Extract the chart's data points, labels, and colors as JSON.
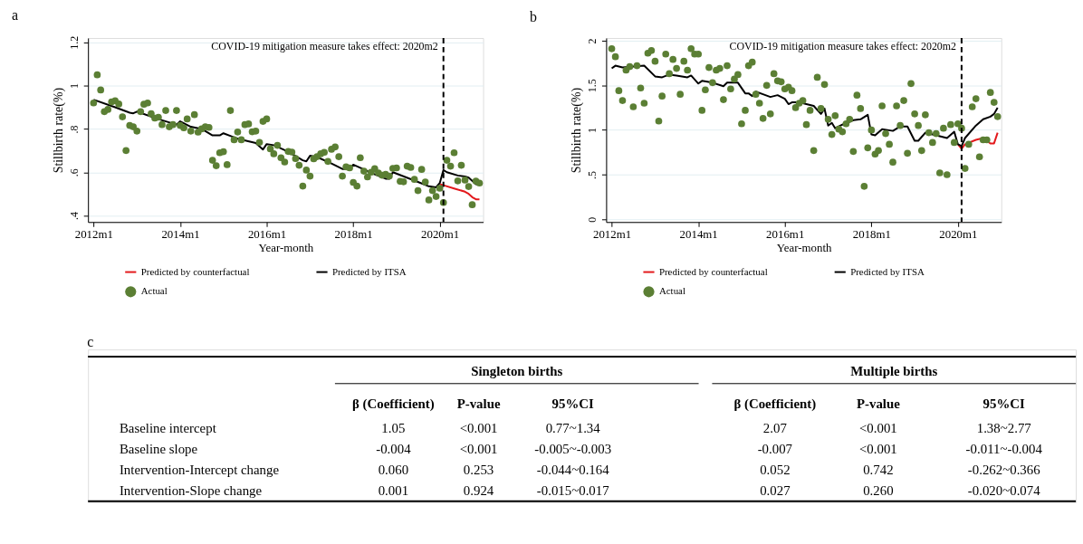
{
  "chart_data": [
    {
      "type": "scatter",
      "title": "a",
      "xlabel": "Year-month",
      "ylabel": "Stillbirth rate(%)",
      "x": [
        "2012-01",
        "2012-02",
        "2012-03",
        "2012-04",
        "2012-05",
        "2012-06",
        "2012-07",
        "2012-08",
        "2012-09",
        "2012-10",
        "2012-11",
        "2012-12",
        "2013-01",
        "2013-02",
        "2013-03",
        "2013-04",
        "2013-05",
        "2013-06",
        "2013-07",
        "2013-08",
        "2013-09",
        "2013-10",
        "2013-11",
        "2013-12",
        "2014-01",
        "2014-02",
        "2014-03",
        "2014-04",
        "2014-05",
        "2014-06",
        "2014-07",
        "2014-08",
        "2014-09",
        "2014-10",
        "2014-11",
        "2014-12",
        "2015-01",
        "2015-02",
        "2015-03",
        "2015-04",
        "2015-05",
        "2015-06",
        "2015-07",
        "2015-08",
        "2015-09",
        "2015-10",
        "2015-11",
        "2015-12",
        "2016-01",
        "2016-02",
        "2016-03",
        "2016-04",
        "2016-05",
        "2016-06",
        "2016-07",
        "2016-08",
        "2016-09",
        "2016-10",
        "2016-11",
        "2016-12",
        "2017-01",
        "2017-02",
        "2017-03",
        "2017-04",
        "2017-05",
        "2017-06",
        "2017-07",
        "2017-08",
        "2017-09",
        "2017-10",
        "2017-11",
        "2017-12",
        "2018-01",
        "2018-02",
        "2018-03",
        "2018-04",
        "2018-05",
        "2018-06",
        "2018-07",
        "2018-08",
        "2018-09",
        "2018-10",
        "2018-11",
        "2018-12",
        "2019-01",
        "2019-02",
        "2019-03",
        "2019-04",
        "2019-05",
        "2019-06",
        "2019-07",
        "2019-08",
        "2019-09",
        "2019-10",
        "2019-11",
        "2019-12",
        "2020-01",
        "2020-02",
        "2020-03",
        "2020-04",
        "2020-05",
        "2020-06",
        "2020-07",
        "2020-08",
        "2020-09",
        "2020-10",
        "2020-11",
        "2020-12"
      ],
      "series": [
        {
          "name": "Predicted by counterfactual",
          "type": "line",
          "color": "#e3191c",
          "x": [
            "2020-01",
            "2020-02",
            "2020-05",
            "2020-08",
            "2020-09",
            "2020-10",
            "2020-11",
            "2020-12"
          ],
          "values": [
            0.545,
            0.54,
            0.525,
            0.51,
            0.5,
            0.485,
            0.475,
            0.475
          ]
        },
        {
          "name": "Predicted by ITSA",
          "type": "line",
          "color": "#000000",
          "x": [
            "2012-01",
            "2012-07",
            "2012-11",
            "2012-12",
            "2013-01",
            "2013-07",
            "2013-12",
            "2014-01",
            "2014-04",
            "2014-07",
            "2014-10",
            "2014-12",
            "2015-01",
            "2015-05",
            "2015-10",
            "2015-12",
            "2016-01",
            "2016-03",
            "2016-07",
            "2016-11",
            "2016-12",
            "2017-01",
            "2017-03",
            "2017-07",
            "2017-10",
            "2017-12",
            "2018-01",
            "2018-07",
            "2018-10",
            "2018-11",
            "2018-12",
            "2019-07",
            "2019-10",
            "2019-12",
            "2020-01",
            "2020-02",
            "2020-03",
            "2020-06",
            "2020-08",
            "2020-09",
            "2020-11",
            "2020-12"
          ],
          "values": [
            0.935,
            0.9,
            0.875,
            0.872,
            0.88,
            0.845,
            0.82,
            0.835,
            0.81,
            0.8,
            0.77,
            0.77,
            0.78,
            0.755,
            0.735,
            0.705,
            0.73,
            0.725,
            0.695,
            0.655,
            0.65,
            0.676,
            0.67,
            0.64,
            0.615,
            0.615,
            0.635,
            0.59,
            0.57,
            0.57,
            0.6,
            0.555,
            0.535,
            0.53,
            0.55,
            0.61,
            0.6,
            0.585,
            0.58,
            0.575,
            0.545,
            0.545
          ]
        },
        {
          "name": "Actual",
          "type": "scatter",
          "marker": "circle",
          "color": "#5b7f34",
          "values": [
            0.92,
            1.05,
            0.98,
            0.88,
            0.89,
            0.925,
            0.93,
            0.915,
            0.856,
            0.7,
            0.816,
            0.81,
            0.79,
            0.88,
            0.914,
            0.92,
            0.87,
            0.85,
            0.854,
            0.82,
            0.885,
            0.81,
            0.82,
            0.885,
            0.816,
            0.805,
            0.846,
            0.79,
            0.866,
            0.785,
            0.8,
            0.81,
            0.807,
            0.655,
            0.63,
            0.69,
            0.695,
            0.635,
            0.885,
            0.75,
            0.786,
            0.75,
            0.82,
            0.823,
            0.787,
            0.79,
            0.738,
            0.835,
            0.846,
            0.708,
            0.685,
            0.724,
            0.667,
            0.647,
            0.696,
            0.693,
            0.663,
            0.632,
            0.536,
            0.61,
            0.582,
            0.662,
            0.672,
            0.685,
            0.692,
            0.65,
            0.706,
            0.717,
            0.672,
            0.582,
            0.625,
            0.62,
            0.553,
            0.536,
            0.667,
            0.605,
            0.578,
            0.6,
            0.616,
            0.597,
            0.586,
            0.59,
            0.582,
            0.618,
            0.62,
            0.558,
            0.556,
            0.628,
            0.622,
            0.567,
            0.515,
            0.613,
            0.555,
            0.472,
            0.515,
            0.488,
            0.526,
            0.46,
            0.655,
            0.628,
            0.69,
            0.56,
            0.632,
            0.564,
            0.534,
            0.45,
            0.559,
            0.55
          ]
        }
      ],
      "xlim": [
        "2011-11-15",
        "2021-01-01"
      ],
      "xticks": [
        {
          "value": "2012-01",
          "label": "2012m1"
        },
        {
          "value": "2014-01",
          "label": "2014m1"
        },
        {
          "value": "2016-01",
          "label": "2016m1"
        },
        {
          "value": "2018-01",
          "label": "2018m1"
        },
        {
          "value": "2020-01",
          "label": "2020m1"
        }
      ],
      "ylim": [
        0.37,
        1.22
      ],
      "yticks": [
        {
          "value": 0.4,
          "label": ".4"
        },
        {
          "value": 0.6,
          "label": ".6"
        },
        {
          "value": 0.8,
          "label": ".8"
        },
        1,
        1.2
      ],
      "ref_lines": [
        {
          "axis": "x",
          "value": "2020-02",
          "label": "COVID-19 mitigation measure takes effect: 2020m2",
          "color": "#000000",
          "line_style": "dashed"
        }
      ],
      "grid": "y",
      "legend": "bottom"
    },
    {
      "type": "scatter",
      "title": "b",
      "xlabel": "Year-month",
      "ylabel": "Stillbirth rate(%)",
      "x": [
        "2012-01",
        "2012-02",
        "2012-03",
        "2012-04",
        "2012-05",
        "2012-06",
        "2012-07",
        "2012-08",
        "2012-09",
        "2012-10",
        "2012-11",
        "2012-12",
        "2013-01",
        "2013-02",
        "2013-03",
        "2013-04",
        "2013-05",
        "2013-06",
        "2013-07",
        "2013-08",
        "2013-09",
        "2013-10",
        "2013-11",
        "2013-12",
        "2014-01",
        "2014-02",
        "2014-03",
        "2014-04",
        "2014-05",
        "2014-06",
        "2014-07",
        "2014-08",
        "2014-09",
        "2014-10",
        "2014-11",
        "2014-12",
        "2015-01",
        "2015-02",
        "2015-03",
        "2015-04",
        "2015-05",
        "2015-06",
        "2015-07",
        "2015-08",
        "2015-09",
        "2015-10",
        "2015-11",
        "2015-12",
        "2016-01",
        "2016-02",
        "2016-03",
        "2016-04",
        "2016-05",
        "2016-06",
        "2016-07",
        "2016-08",
        "2016-09",
        "2016-10",
        "2016-11",
        "2016-12",
        "2017-01",
        "2017-02",
        "2017-03",
        "2017-04",
        "2017-05",
        "2017-06",
        "2017-07",
        "2017-08",
        "2017-09",
        "2017-10",
        "2017-11",
        "2017-12",
        "2018-01",
        "2018-02",
        "2018-03",
        "2018-04",
        "2018-05",
        "2018-06",
        "2018-07",
        "2018-08",
        "2018-09",
        "2018-10",
        "2018-11",
        "2018-12",
        "2019-01",
        "2019-02",
        "2019-03",
        "2019-04",
        "2019-05",
        "2019-06",
        "2019-07",
        "2019-08",
        "2019-09",
        "2019-10",
        "2019-11",
        "2019-12",
        "2020-01",
        "2020-02",
        "2020-03",
        "2020-04",
        "2020-05",
        "2020-06",
        "2020-07",
        "2020-08",
        "2020-09",
        "2020-10",
        "2020-11",
        "2020-12"
      ],
      "series": [
        {
          "name": "Predicted by counterfactual",
          "type": "line",
          "color": "#e3191c",
          "x": [
            "2020-01",
            "2020-02",
            "2020-03",
            "2020-06",
            "2020-08",
            "2020-10",
            "2020-11",
            "2020-12"
          ],
          "values": [
            0.84,
            0.79,
            0.84,
            0.89,
            0.91,
            0.85,
            0.85,
            0.97
          ]
        },
        {
          "name": "Predicted by ITSA",
          "type": "line",
          "color": "#000000",
          "x": [
            "2012-01",
            "2012-02",
            "2012-04",
            "2012-07",
            "2012-10",
            "2013-01",
            "2013-03",
            "2013-05",
            "2013-07",
            "2013-10",
            "2013-11",
            "2014-01",
            "2014-02",
            "2014-05",
            "2014-08",
            "2014-09",
            "2014-12",
            "2015-02",
            "2015-03",
            "2015-04",
            "2015-05",
            "2015-07",
            "2015-09",
            "2015-11",
            "2016-01",
            "2016-02",
            "2016-03",
            "2016-05",
            "2016-07",
            "2016-09",
            "2016-11",
            "2016-12",
            "2017-01",
            "2017-02",
            "2017-03",
            "2017-05",
            "2017-08",
            "2017-10",
            "2017-12",
            "2018-01",
            "2018-02",
            "2018-04",
            "2018-07",
            "2018-09",
            "2018-11",
            "2019-01",
            "2019-02",
            "2019-04",
            "2019-06",
            "2019-10",
            "2019-12",
            "2020-01",
            "2020-02",
            "2020-03",
            "2020-06",
            "2020-08",
            "2020-10",
            "2020-11",
            "2020-12"
          ],
          "values": [
            1.69,
            1.72,
            1.7,
            1.71,
            1.72,
            1.6,
            1.59,
            1.62,
            1.61,
            1.59,
            1.61,
            1.52,
            1.55,
            1.53,
            1.49,
            1.53,
            1.53,
            1.41,
            1.41,
            1.38,
            1.43,
            1.4,
            1.37,
            1.39,
            1.35,
            1.29,
            1.31,
            1.31,
            1.29,
            1.27,
            1.18,
            1.24,
            1.05,
            1.08,
            1.02,
            1.06,
            1.11,
            1.12,
            1.17,
            0.95,
            0.94,
            1.01,
            0.99,
            1.04,
            1.04,
            0.88,
            0.88,
            0.97,
            0.95,
            0.91,
            0.98,
            0.84,
            0.82,
            0.91,
            1.05,
            1.12,
            1.15,
            1.18,
            1.25
          ]
        },
        {
          "name": "Actual",
          "type": "scatter",
          "marker": "circle",
          "color": "#5b7f34",
          "values": [
            1.91,
            1.82,
            1.44,
            1.33,
            1.67,
            1.71,
            1.26,
            1.72,
            1.47,
            1.3,
            1.86,
            1.89,
            1.77,
            1.1,
            1.38,
            1.85,
            1.63,
            1.79,
            1.69,
            1.4,
            1.77,
            1.67,
            1.91,
            1.85,
            1.85,
            1.22,
            1.45,
            1.7,
            1.53,
            1.67,
            1.69,
            1.34,
            1.72,
            1.46,
            1.57,
            1.62,
            1.07,
            1.22,
            1.72,
            1.76,
            1.4,
            1.3,
            1.13,
            1.5,
            1.18,
            1.63,
            1.55,
            1.54,
            1.46,
            1.48,
            1.44,
            1.25,
            1.3,
            1.33,
            1.06,
            1.22,
            0.77,
            1.59,
            1.24,
            1.51,
            1.12,
            0.95,
            1.16,
            1.01,
            0.98,
            1.07,
            1.12,
            0.76,
            1.39,
            1.24,
            0.37,
            0.8,
            1.0,
            0.73,
            0.77,
            1.27,
            0.96,
            0.84,
            0.64,
            1.27,
            1.05,
            1.33,
            0.74,
            1.52,
            1.18,
            1.05,
            0.77,
            1.17,
            0.97,
            0.86,
            0.96,
            0.52,
            1.02,
            0.5,
            1.06,
            0.86,
            1.07,
            1.02,
            0.57,
            0.84,
            1.26,
            1.35,
            0.7,
            0.89,
            0.89,
            1.42,
            1.31,
            1.15
          ]
        }
      ],
      "xlim": [
        "2011-11-15",
        "2021-01-01"
      ],
      "xticks": [
        {
          "value": "2012-01",
          "label": "2012m1"
        },
        {
          "value": "2014-01",
          "label": "2014m1"
        },
        {
          "value": "2016-01",
          "label": "2016m1"
        },
        {
          "value": "2018-01",
          "label": "2018m1"
        },
        {
          "value": "2020-01",
          "label": "2020m1"
        }
      ],
      "ylim": [
        -0.03,
        2.03
      ],
      "yticks": [
        0,
        {
          "value": 0.5,
          "label": ".5"
        },
        1,
        1.5,
        2
      ],
      "ref_lines": [
        {
          "axis": "x",
          "value": "2020-02",
          "label": "COVID-19 mitigation measure takes effect: 2020m2",
          "color": "#000000",
          "line_style": "dashed"
        }
      ],
      "grid": "y",
      "legend": "bottom"
    },
    {
      "type": "other",
      "title": "c",
      "annotations": [
        "Singleton births",
        "Multiple births",
        "β (Coefficient)",
        "P-value",
        "95%CI",
        "β (Coefficient)",
        "P-value",
        "95%CI",
        "Baseline intercept",
        "1.05",
        "<0.001",
        "0.77~1.34",
        "2.07",
        "<0.001",
        "1.38~2.77",
        "Baseline slope",
        "-0.004",
        "<0.001",
        "-0.005~-0.003",
        "-0.007",
        "<0.001",
        "-0.011~-0.004",
        "Intervention-Intercept change",
        "0.060",
        "0.253",
        "-0.044~0.164",
        "0.052",
        "0.742",
        "-0.262~0.366",
        "Intervention-Slope change",
        "0.001",
        "0.924",
        "-0.015~0.017",
        "0.027",
        "0.260",
        "-0.020~0.074"
      ]
    }
  ]
}
